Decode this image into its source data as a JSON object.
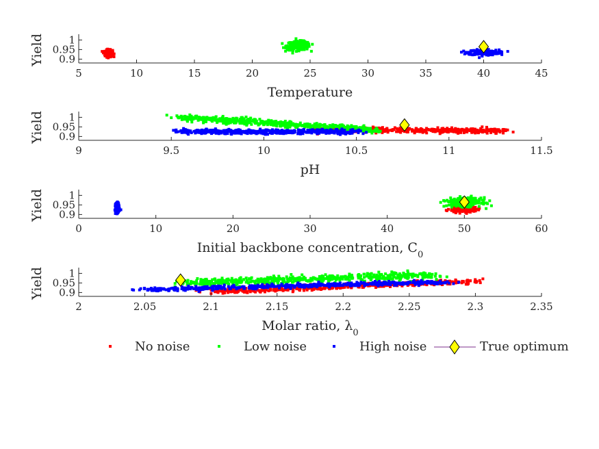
{
  "chart_data": [
    {
      "type": "scatter",
      "xlabel": "Temperature",
      "xlabel_sub": "",
      "ylabel": "Yield",
      "xlim": [
        5,
        45
      ],
      "ylim": [
        0.88,
        1.03
      ],
      "xticks": [
        "5",
        "10",
        "15",
        "20",
        "25",
        "30",
        "35",
        "40",
        "45"
      ],
      "yticks": [
        "0.9",
        "0.95",
        "1"
      ],
      "clusters": [
        {
          "series": "No noise",
          "x_center": 7.6,
          "x_spread": 0.3,
          "y_center": 0.93,
          "y_spread": 0.02
        },
        {
          "series": "Low noise",
          "x_center": 24,
          "x_spread": 0.9,
          "y_center": 0.97,
          "y_spread": 0.025
        },
        {
          "series": "High noise",
          "x_center": 40,
          "x_spread": 1.2,
          "y_center": 0.935,
          "y_spread": 0.015
        }
      ],
      "optimum": {
        "x": 40,
        "y": 0.965
      }
    },
    {
      "type": "scatter",
      "xlabel": "pH",
      "xlabel_sub": "",
      "ylabel": "Yield",
      "xlim": [
        9,
        11.5
      ],
      "ylim": [
        0.88,
        1.03
      ],
      "xticks": [
        "9",
        "9.5",
        "10",
        "10.5",
        "11",
        "11.5"
      ],
      "yticks": [
        "0.9",
        "0.95",
        "1"
      ],
      "bands": [
        {
          "series": "No noise",
          "x_range": [
            10.3,
            11.3
          ],
          "y_start": 0.935,
          "y_end": 0.93,
          "y_spread": 0.012
        },
        {
          "series": "Low noise",
          "x_range": [
            9.55,
            10.6
          ],
          "y_start": 1.0,
          "y_end": 0.935,
          "y_spread": 0.015
        },
        {
          "series": "High noise",
          "x_range": [
            9.55,
            10.5
          ],
          "y_start": 0.925,
          "y_end": 0.925,
          "y_spread": 0.012
        }
      ],
      "optimum": {
        "x": 10.76,
        "y": 0.96
      }
    },
    {
      "type": "scatter",
      "xlabel": "Initial backbone concentration, C",
      "xlabel_sub": "0",
      "ylabel": "Yield",
      "xlim": [
        0,
        60
      ],
      "ylim": [
        0.88,
        1.03
      ],
      "xticks": [
        "0",
        "10",
        "20",
        "30",
        "40",
        "50",
        "60"
      ],
      "yticks": [
        "0.9",
        "0.95",
        "1"
      ],
      "clusters": [
        {
          "series": "No noise",
          "x_center": 50,
          "x_spread": 1.5,
          "y_center": 0.93,
          "y_spread": 0.02
        },
        {
          "series": "Low noise",
          "x_center": 50,
          "x_spread": 2.0,
          "y_center": 0.965,
          "y_spread": 0.025
        },
        {
          "series": "High noise",
          "x_center": 5,
          "x_spread": 0.2,
          "y_center": 0.935,
          "y_spread": 0.025
        }
      ],
      "optimum": {
        "x": 50,
        "y": 0.965
      }
    },
    {
      "type": "scatter",
      "xlabel": "Molar ratio, λ",
      "xlabel_sub": "0",
      "ylabel": "Yield",
      "xlim": [
        2,
        2.35
      ],
      "ylim": [
        0.88,
        1.03
      ],
      "xticks": [
        "2",
        "2.05",
        "2.1",
        "2.15",
        "2.2",
        "2.25",
        "2.3",
        "2.35"
      ],
      "yticks": [
        "0.9",
        "0.95",
        "1"
      ],
      "bands": [
        {
          "series": "No noise",
          "x_range": [
            2.1,
            2.3
          ],
          "y_start": 0.905,
          "y_end": 0.96,
          "y_spread": 0.012
        },
        {
          "series": "Low noise",
          "x_range": [
            2.08,
            2.27
          ],
          "y_start": 0.95,
          "y_end": 0.99,
          "y_spread": 0.02
        },
        {
          "series": "High noise",
          "x_range": [
            2.05,
            2.28
          ],
          "y_start": 0.915,
          "y_end": 0.955,
          "y_spread": 0.01
        }
      ],
      "optimum": {
        "x": 2.077,
        "y": 0.965
      }
    }
  ],
  "legend": {
    "placement": "bottom",
    "items": [
      {
        "label": "No noise",
        "color": "#ff0000",
        "marker": "square"
      },
      {
        "label": "Low noise",
        "color": "#00ff00",
        "marker": "square"
      },
      {
        "label": "High noise",
        "color": "#0000ff",
        "marker": "square"
      },
      {
        "label": "True optimum",
        "color": "#ffff00",
        "marker": "diamond",
        "line_color": "#7e2f8e"
      }
    ]
  }
}
